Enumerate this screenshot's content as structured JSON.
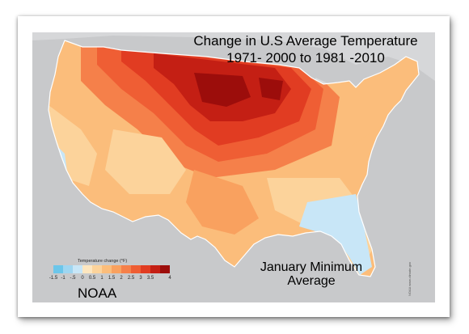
{
  "title": {
    "line1": "Change in U.S Average Temperature",
    "line2": "1971- 2000 to 1981 -2010"
  },
  "caption": {
    "line1": "January Minimum",
    "line2": "Average"
  },
  "source": "NOAA",
  "credit": "NOAA www.climate.gov",
  "legend": {
    "title": "Temperature change (°F)",
    "ticks": [
      "-1.5",
      "-1",
      "-.5",
      "0",
      "0.5",
      "1",
      "1.5",
      "2",
      "2.5",
      "3",
      "3.5",
      "4"
    ],
    "colors": [
      "#6cc6ea",
      "#9fd6f1",
      "#c8e6f7",
      "#fde6bf",
      "#fcd39b",
      "#fbbd7b",
      "#f9a15f",
      "#f5804a",
      "#ef5e34",
      "#e13c22",
      "#c41f14",
      "#9c0d0b"
    ]
  },
  "colors": {
    "land_background": "#c8c9cb",
    "water": "#d9dadc",
    "map_outline": "#ffffff"
  }
}
